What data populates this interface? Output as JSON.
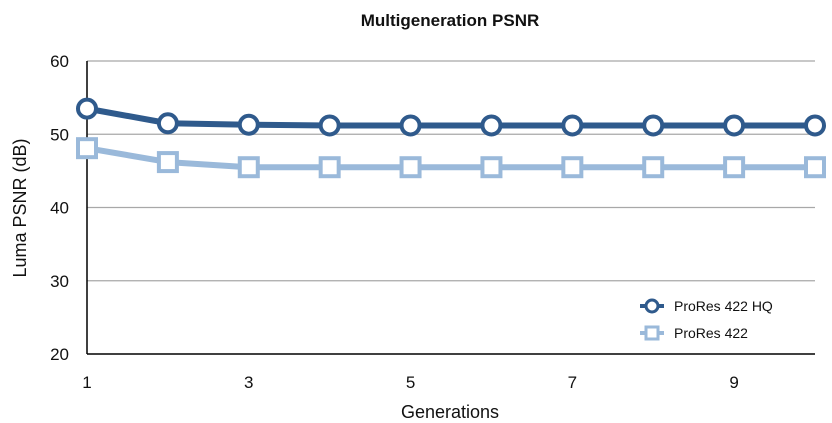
{
  "chart_data": {
    "type": "line",
    "title": "Multigeneration PSNR",
    "xlabel": "Generations",
    "ylabel": "Luma PSNR (dB)",
    "x": [
      1,
      2,
      3,
      4,
      5,
      6,
      7,
      8,
      9,
      10
    ],
    "xticks": [
      "1",
      "3",
      "5",
      "7",
      "9"
    ],
    "yticks": [
      "20",
      "30",
      "40",
      "50",
      "60"
    ],
    "xlim": [
      1,
      10
    ],
    "ylim": [
      20,
      60
    ],
    "grid": "horizontal",
    "legend_position": "bottom-right",
    "series": [
      {
        "name": "ProRes 422 HQ",
        "marker": "circle",
        "color": "#2f5a8c",
        "values": [
          53.5,
          51.5,
          51.3,
          51.2,
          51.2,
          51.2,
          51.2,
          51.2,
          51.2,
          51.2
        ]
      },
      {
        "name": "ProRes 422",
        "marker": "square",
        "color": "#9ab9da",
        "values": [
          48.1,
          46.2,
          45.5,
          45.5,
          45.5,
          45.5,
          45.5,
          45.5,
          45.5,
          45.5
        ]
      }
    ]
  }
}
